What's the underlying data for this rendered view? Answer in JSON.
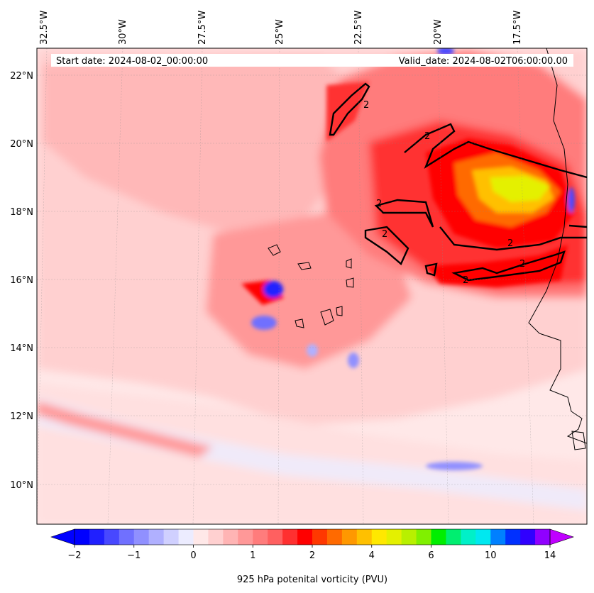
{
  "header": {
    "start_date": "Start date: 2024-08-02_00:00:00",
    "valid_date": "Valid_date: 2024-08-02T06:00:00.00"
  },
  "map": {
    "projection_grid": true,
    "lon_labels": [
      "32.5°W",
      "30°W",
      "27.5°W",
      "25°W",
      "22.5°W",
      "20°W",
      "17.5°W"
    ],
    "lat_labels": [
      "22°N",
      "20°N",
      "18°N",
      "16°N",
      "14°N",
      "12°N",
      "10°N"
    ],
    "contour_level": "2",
    "background_color": "#ffe8e8"
  },
  "colorbar": {
    "label": "925 hPa potenital vorticity (PVU)",
    "ticks": [
      "−2",
      "−1",
      "0",
      "1",
      "2",
      "4",
      "6",
      "10",
      "14"
    ],
    "colors": [
      "#0000ff",
      "#2020ff",
      "#4848ff",
      "#7070ff",
      "#9090ff",
      "#b0b0ff",
      "#d0d0ff",
      "#ececff",
      "#ffe8e8",
      "#ffd0d0",
      "#ffb4b4",
      "#ff9898",
      "#ff7c7c",
      "#ff6060",
      "#ff3030",
      "#ff0000",
      "#ff3800",
      "#ff6a00",
      "#ff9800",
      "#ffc000",
      "#ffe800",
      "#e4f000",
      "#b8f000",
      "#80f000",
      "#00ee00",
      "#00ee70",
      "#00f0c8",
      "#00e8f0",
      "#0080ff",
      "#0030ff",
      "#3000ff",
      "#9000ff"
    ],
    "under_color": "#0000ff",
    "over_color": "#c000ff"
  }
}
